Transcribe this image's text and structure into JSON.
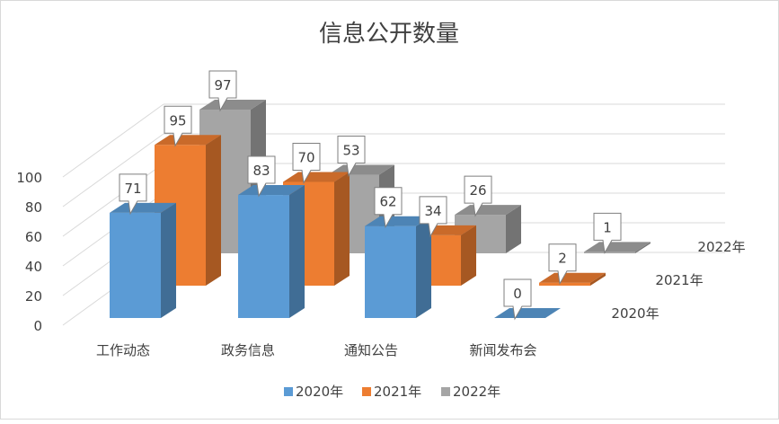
{
  "chart_data": {
    "type": "bar",
    "subtype": "3d-clustered-column",
    "title": "信息公开数量",
    "categories": [
      "工作动态",
      "政务信息",
      "通知公告",
      "新闻发布会"
    ],
    "series": [
      {
        "name": "2020年",
        "values": [
          71,
          83,
          62,
          0
        ],
        "color": "#5b9bd5"
      },
      {
        "name": "2021年",
        "values": [
          95,
          70,
          34,
          2
        ],
        "color": "#ed7d31"
      },
      {
        "name": "2022年",
        "values": [
          97,
          53,
          26,
          1
        ],
        "color": "#a5a5a5"
      }
    ],
    "y_ticks": [
      "0",
      "20",
      "40",
      "60",
      "80",
      "100"
    ],
    "ylim": [
      0,
      100
    ],
    "xlabel": "",
    "ylabel": "",
    "grid": true,
    "data_labels": true,
    "legend_position": "bottom"
  }
}
